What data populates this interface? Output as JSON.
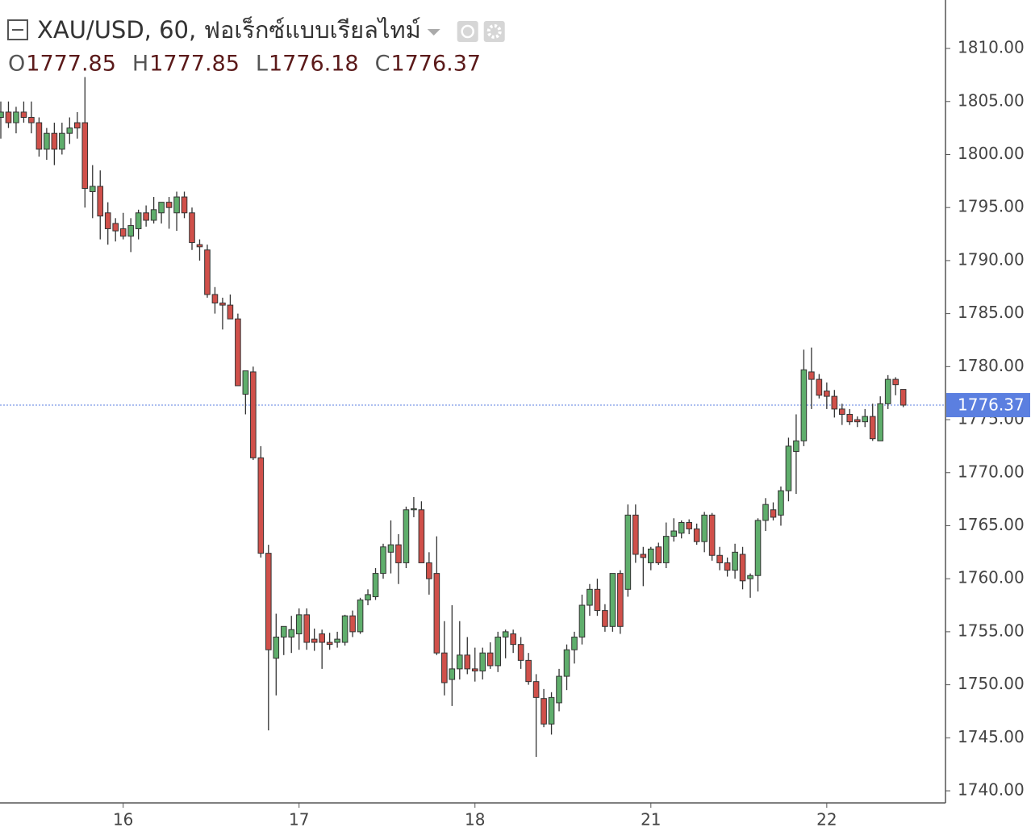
{
  "chart_data": {
    "type": "candlestick",
    "title": "XAU/USD, 60, ฟอเร็กซ์แบบเรียลไทม์",
    "ohlc_header": [
      {
        "key": "O",
        "value": 1777.85
      },
      {
        "key": "H",
        "value": 1777.85
      },
      {
        "key": "L",
        "value": 1776.18
      },
      {
        "key": "C",
        "value": 1776.37
      }
    ],
    "last_price": 1776.37,
    "up_color": "#5fae6c",
    "down_color": "#d0504a",
    "wick_color": "#333333",
    "last_price_color": "#5b7fe0",
    "ylim": [
      1738.86,
      1814.57
    ],
    "yticks": [
      {
        "value": 1740,
        "label": "1740.00"
      },
      {
        "value": 1745,
        "label": "1745.00"
      },
      {
        "value": 1750,
        "label": "1750.00"
      },
      {
        "value": 1755,
        "label": "1755.00"
      },
      {
        "value": 1760,
        "label": "1760.00"
      },
      {
        "value": 1765,
        "label": "1765.00"
      },
      {
        "value": 1770,
        "label": "1770.00"
      },
      {
        "value": 1775,
        "label": "1775.00"
      },
      {
        "value": 1780,
        "label": "1780.00"
      },
      {
        "value": 1785,
        "label": "1785.00"
      },
      {
        "value": 1790,
        "label": "1790.00"
      },
      {
        "value": 1795,
        "label": "1795.00"
      },
      {
        "value": 1800,
        "label": "1800.00"
      },
      {
        "value": 1805,
        "label": "1805.00"
      },
      {
        "value": 1810,
        "label": "1810.00"
      }
    ],
    "categories": [
      null,
      null,
      null,
      null,
      null,
      null,
      null,
      null,
      null,
      null,
      null,
      null,
      null,
      null,
      null,
      null,
      "16",
      null,
      null,
      null,
      null,
      null,
      null,
      null,
      null,
      null,
      null,
      null,
      null,
      null,
      null,
      null,
      null,
      null,
      null,
      null,
      null,
      null,
      null,
      "17",
      null,
      null,
      null,
      null,
      null,
      null,
      null,
      null,
      null,
      null,
      null,
      null,
      null,
      null,
      null,
      null,
      null,
      null,
      null,
      null,
      null,
      null,
      "18",
      null,
      null,
      null,
      null,
      null,
      null,
      null,
      null,
      null,
      null,
      null,
      null,
      null,
      null,
      null,
      null,
      null,
      null,
      null,
      null,
      null,
      null,
      "21",
      null,
      null,
      null,
      null,
      null,
      null,
      null,
      null,
      null,
      null,
      null,
      null,
      null,
      null,
      null,
      null,
      null,
      null,
      null,
      null,
      null,
      null,
      "22",
      null,
      null,
      null,
      null,
      null,
      null,
      null,
      null,
      null,
      null
    ],
    "open": [
      1803.5,
      1804,
      1803,
      1804,
      1803.5,
      1803,
      1800.5,
      1802,
      1800.5,
      1802,
      1803,
      1803,
      1796.5,
      1797,
      1794.5,
      1793.5,
      1793,
      1792.3,
      1793,
      1794.5,
      1793.8,
      1794.5,
      1795.5,
      1794.5,
      1796,
      1794.5,
      1791.5,
      1791,
      1786.8,
      1786,
      1785.8,
      1784.5,
      1777.4,
      1779.5,
      1771.4,
      1762.4,
      1752.5,
      1754.5,
      1754.5,
      1754.8,
      1756.6,
      1754.3,
      1754.8,
      1754,
      1754,
      1754,
      1756.5,
      1755,
      1758,
      1758.3,
      1760.5,
      1762.5,
      1763.2,
      1761.5,
      1766.5,
      1766.5,
      1761.5,
      1760.5,
      1753,
      1750.5,
      1751.5,
      1752.8,
      1751.5,
      1751.3,
      1753,
      1751.8,
      1754.5,
      1754.8,
      1753.8,
      1752.3,
      1750.3,
      1748.7,
      1746.3,
      1748.3,
      1750.8,
      1753.3,
      1754.5,
      1757.5,
      1759,
      1757,
      1755.5,
      1760.5,
      1759,
      1766,
      1762.3,
      1761.5,
      1763,
      1761.5,
      1764,
      1764.3,
      1765.3,
      1764.7,
      1763.5,
      1766,
      1762.2,
      1761.5,
      1760.8,
      1762.3,
      1760,
      1760.3,
      1765.5,
      1766.5,
      1766,
      1768.3,
      1772,
      1773,
      1779.5,
      1778.8,
      1777.7,
      1777.2,
      1776,
      1775.5,
      1775,
      1774.8,
      1775.3,
      1773,
      1776.5,
      1778.8,
      1777.85
    ],
    "high": [
      1805,
      1805,
      1804.5,
      1805,
      1805,
      1803.5,
      1802.5,
      1803,
      1803,
      1803.5,
      1804,
      1807.3,
      1799,
      1798.5,
      1795.5,
      1794,
      1794.5,
      1794,
      1794.8,
      1795.2,
      1796,
      1795.5,
      1796,
      1796.5,
      1796.5,
      1795,
      1792,
      1791.5,
      1787.5,
      1786.5,
      1786.8,
      1785,
      1779.5,
      1780,
      1772.5,
      1763.2,
      1756.7,
      1755.5,
      1756.5,
      1757.2,
      1757.2,
      1755.3,
      1755.2,
      1754.9,
      1755,
      1756.6,
      1757,
      1758.2,
      1759,
      1761,
      1763.3,
      1765.5,
      1764.2,
      1766.8,
      1767.7,
      1767.3,
      1762.5,
      1764,
      1756,
      1757.5,
      1756,
      1754.5,
      1753.5,
      1753.5,
      1754,
      1755,
      1755.2,
      1755.2,
      1754.5,
      1753,
      1751,
      1749.6,
      1749.3,
      1751.5,
      1753.8,
      1755,
      1758.5,
      1759.5,
      1760,
      1757.6,
      1760.5,
      1760.8,
      1767,
      1767,
      1763,
      1763,
      1763.4,
      1765.3,
      1765.7,
      1765.5,
      1765.6,
      1765.2,
      1766.3,
      1766.2,
      1763,
      1762,
      1763.3,
      1763,
      1760.5,
      1765.7,
      1767.6,
      1767.2,
      1768.7,
      1773.3,
      1775.5,
      1781.6,
      1781.8,
      1779.3,
      1778.5,
      1777.8,
      1776.5,
      1776,
      1775.3,
      1776,
      1776.5,
      1777.2,
      1779.2,
      1779,
      1777.85
    ],
    "low": [
      1801.5,
      1802.5,
      1802,
      1803,
      1802,
      1799.8,
      1799.5,
      1799,
      1800,
      1801,
      1801.5,
      1795,
      1794,
      1792,
      1791.5,
      1791.8,
      1792,
      1790.8,
      1792,
      1793.2,
      1793.5,
      1793.5,
      1793,
      1792.8,
      1794,
      1791,
      1790,
      1786.5,
      1785,
      1783.5,
      1784.5,
      1778.5,
      1775.5,
      1771.2,
      1762,
      1745.7,
      1749,
      1752.8,
      1753,
      1753.3,
      1753.3,
      1753.2,
      1751.5,
      1753.3,
      1753.5,
      1753.7,
      1754.5,
      1754.8,
      1757.5,
      1758,
      1760,
      1760.5,
      1759.5,
      1761,
      1765.8,
      1761.5,
      1758.5,
      1752.8,
      1749,
      1748,
      1750.5,
      1751,
      1750.3,
      1750.5,
      1751.5,
      1751.2,
      1752.5,
      1753,
      1751.5,
      1750,
      1743.2,
      1746,
      1745.3,
      1747.5,
      1749.5,
      1752,
      1753.8,
      1756.5,
      1756.5,
      1755,
      1755,
      1754.8,
      1758.3,
      1761.5,
      1759.3,
      1760.8,
      1761.3,
      1761,
      1763.5,
      1763.8,
      1764.2,
      1763.2,
      1762.5,
      1761.7,
      1760.8,
      1760.2,
      1760,
      1759,
      1758.2,
      1758.8,
      1764.5,
      1765.5,
      1765,
      1767.3,
      1768,
      1772.5,
      1776,
      1777,
      1776,
      1775.2,
      1774.5,
      1774.5,
      1774.3,
      1774.3,
      1773,
      1773,
      1776,
      1777.3,
      1776.18
    ],
    "close": [
      1804,
      1803,
      1804,
      1803.5,
      1803,
      1800.5,
      1802,
      1800.5,
      1802,
      1802.5,
      1802.5,
      1796.8,
      1797,
      1794.2,
      1793,
      1792.8,
      1792.3,
      1793.3,
      1794.5,
      1793.8,
      1794.8,
      1795.5,
      1795,
      1796,
      1794.5,
      1791.7,
      1791.3,
      1786.8,
      1786,
      1785.8,
      1784.5,
      1778.2,
      1779.6,
      1771.4,
      1762.4,
      1753.3,
      1754.5,
      1755.5,
      1755.2,
      1756.6,
      1754,
      1754,
      1754,
      1753.8,
      1754.3,
      1756.5,
      1755,
      1758,
      1758.5,
      1760.5,
      1763,
      1763.2,
      1761.5,
      1766.5,
      1766.6,
      1761.5,
      1760,
      1753,
      1750.2,
      1751.5,
      1752.8,
      1751.5,
      1751.3,
      1753,
      1751.8,
      1754.5,
      1755,
      1753.8,
      1752.3,
      1750.3,
      1748.8,
      1746.3,
      1748.8,
      1750.8,
      1753.3,
      1754.5,
      1757.5,
      1759,
      1757,
      1755.5,
      1760.5,
      1755.5,
      1766,
      1762.3,
      1762,
      1762.8,
      1761.5,
      1764,
      1764.5,
      1765.3,
      1764.7,
      1763.5,
      1766,
      1762.2,
      1761.5,
      1760.8,
      1762.5,
      1759.8,
      1760.3,
      1765.5,
      1767,
      1765.8,
      1768.3,
      1772.5,
      1773,
      1779.7,
      1778.8,
      1777.3,
      1777.2,
      1776,
      1775.5,
      1774.8,
      1774.8,
      1775.3,
      1773.2,
      1776.5,
      1778.8,
      1778.3,
      1776.37
    ]
  }
}
